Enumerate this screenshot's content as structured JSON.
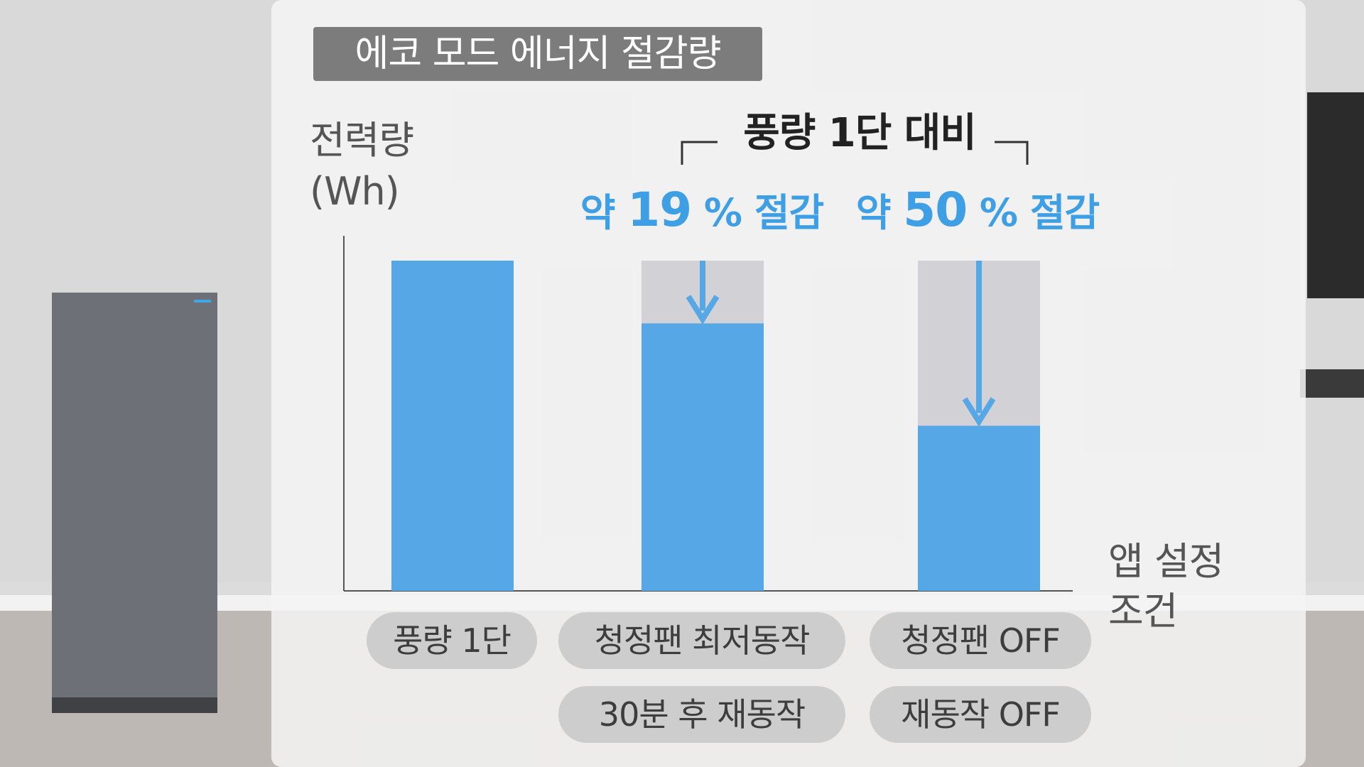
{
  "title": "에코 모드 에너지 절감량",
  "y_axis_label_line1": "전력량",
  "y_axis_label_line2": "(Wh)",
  "x_axis_label_line1": "앱 설정",
  "x_axis_label_line2": "조건",
  "comparison_label": "풍량 1단 대비",
  "savings": [
    {
      "prefix": "약 ",
      "number": "19",
      "suffix": " % 절감"
    },
    {
      "prefix": "약 ",
      "number": "50",
      "suffix": " % 절감"
    }
  ],
  "conditions": [
    {
      "lines": [
        "풍량 1단"
      ]
    },
    {
      "lines": [
        "청정팬 최저동작",
        "30분 후 재동작"
      ]
    },
    {
      "lines": [
        "청정팬 OFF",
        "재동작 OFF"
      ]
    }
  ],
  "colors": {
    "bar": "#55a7e5",
    "reference_bar": "#d2d2d6",
    "accent_text": "#3f9fe5",
    "title_box": "#7c7c7c",
    "pill": "#cdcdcd"
  },
  "chart_data": {
    "type": "bar",
    "title": "에코 모드 에너지 절감량",
    "ylabel": "전력량 (Wh)",
    "xlabel": "앱 설정 조건",
    "categories": [
      "풍량 1단",
      "청정팬 최저동작 / 30분 후 재동작",
      "청정팬 OFF / 재동작 OFF"
    ],
    "values": [
      100,
      81,
      50
    ],
    "reference_value": 100,
    "ylim": [
      0,
      100
    ],
    "annotations": [
      "약 19 % 절감",
      "약 50 % 절감"
    ],
    "grid": false
  }
}
